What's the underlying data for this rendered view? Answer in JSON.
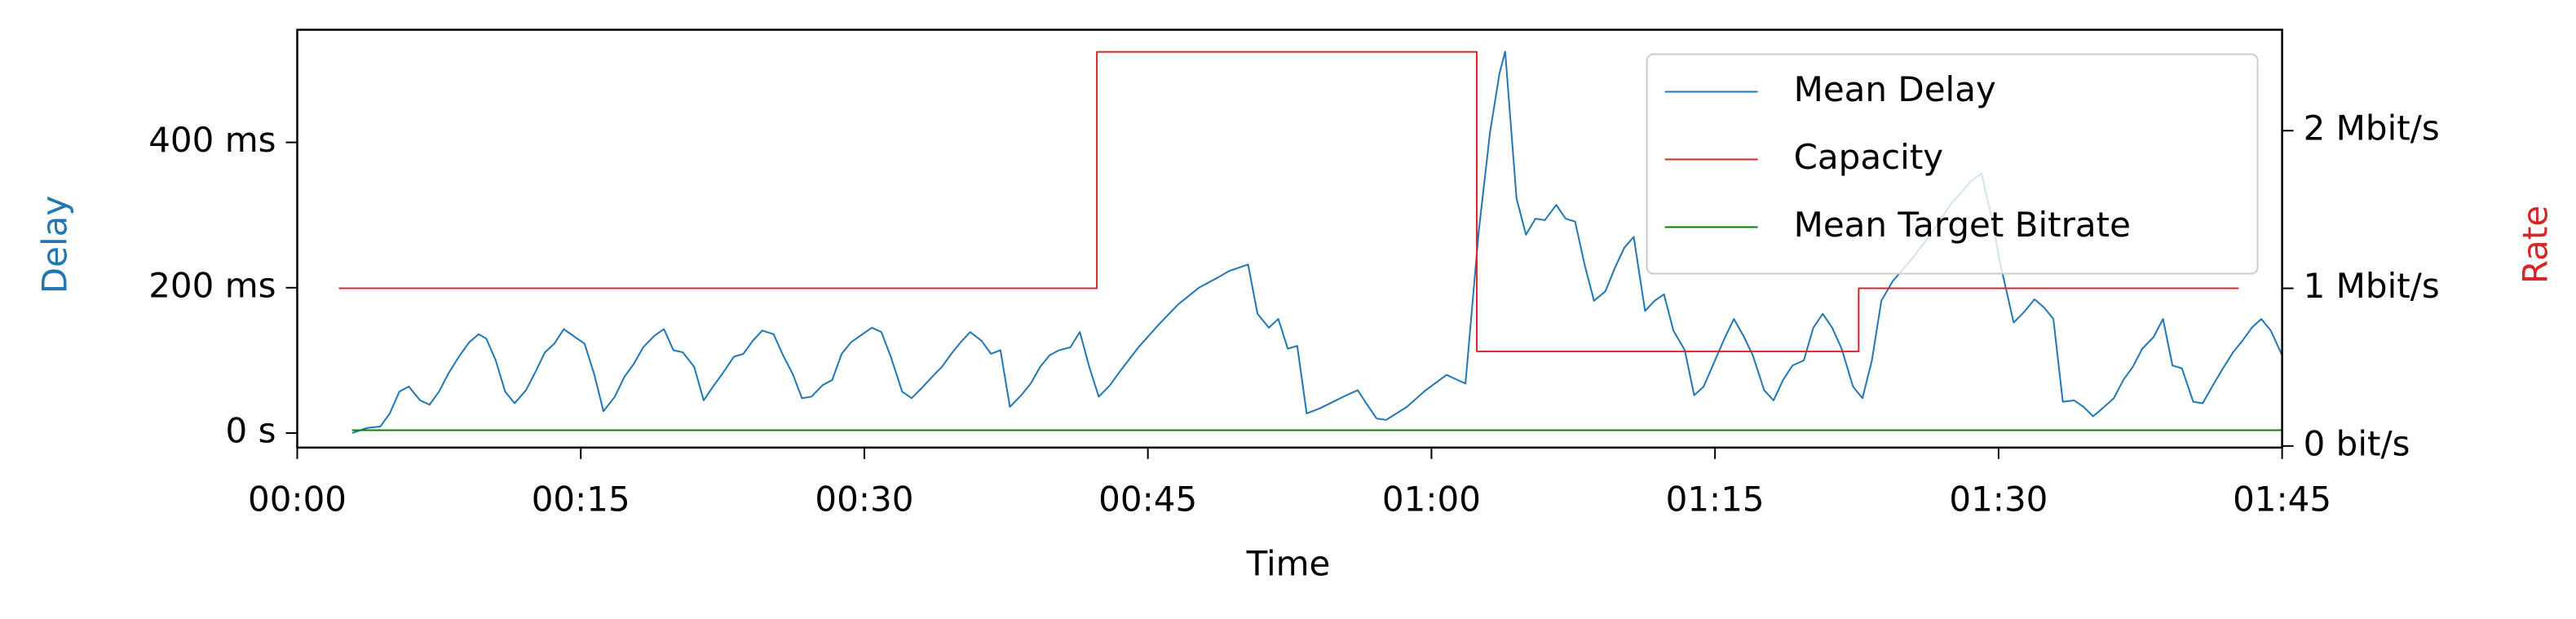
{
  "chart_data": {
    "type": "line",
    "xlabel": "Time",
    "ylabel": "Delay",
    "y2label": "Rate",
    "ylabel_color": "#1f77b4",
    "y2label_color": "#d62728",
    "legend": "upper right",
    "xlim": [
      0,
      105
    ],
    "xticks": [
      {
        "value": 0,
        "label": "00:00"
      },
      {
        "value": 15,
        "label": "00:15"
      },
      {
        "value": 30,
        "label": "00:30"
      },
      {
        "value": 45,
        "label": "00:45"
      },
      {
        "value": 60,
        "label": "01:00"
      },
      {
        "value": 75,
        "label": "01:15"
      },
      {
        "value": 90,
        "label": "01:30"
      },
      {
        "value": 105,
        "label": "01:45"
      }
    ],
    "ylim": [
      -20,
      555
    ],
    "yticks": [
      {
        "value": 0,
        "label": "0 s"
      },
      {
        "value": 200,
        "label": "200 ms"
      },
      {
        "value": 400,
        "label": "400 ms"
      }
    ],
    "y2lim": [
      -10000,
      2640000
    ],
    "y2ticks": [
      {
        "value": 0,
        "label": "0 bit/s"
      },
      {
        "value": 1000000,
        "label": "1 Mbit/s"
      },
      {
        "value": 2000000,
        "label": "2 Mbit/s"
      }
    ],
    "series": [
      {
        "name": "Mean Delay",
        "color": "#1f77b4",
        "x": [
          2.9,
          3.7,
          4.4,
          4.9,
          5.4,
          5.9,
          6.5,
          7.0,
          7.5,
          8.0,
          8.6,
          9.1,
          9.6,
          10.0,
          10.5,
          11.0,
          11.5,
          12.1,
          12.6,
          13.1,
          13.6,
          14.1,
          14.7,
          15.2,
          15.7,
          16.2,
          16.8,
          17.3,
          17.8,
          18.3,
          18.9,
          19.4,
          19.9,
          20.4,
          21.0,
          21.5,
          22.0,
          22.5,
          23.1,
          23.6,
          24.1,
          24.6,
          25.2,
          25.7,
          26.2,
          26.7,
          27.2,
          27.8,
          28.3,
          28.8,
          29.3,
          29.9,
          30.4,
          30.9,
          31.4,
          32.0,
          32.5,
          33.0,
          33.5,
          34.1,
          34.6,
          35.1,
          35.6,
          36.2,
          36.7,
          37.2,
          37.7,
          38.3,
          38.8,
          39.3,
          39.8,
          40.3,
          40.9,
          41.4,
          41.9,
          42.4,
          43.0,
          43.5,
          44.5,
          45.6,
          46.6,
          47.7,
          48.7,
          49.3,
          50.3,
          50.8,
          51.4,
          51.9,
          52.4,
          52.9,
          53.4,
          54.1,
          54.8,
          55.5,
          56.1,
          56.6,
          57.1,
          57.6,
          58.7,
          59.7,
          60.8,
          61.8,
          62.5,
          63.1,
          63.6,
          63.9,
          64.5,
          65.0,
          65.5,
          66.0,
          66.6,
          67.1,
          67.6,
          68.1,
          68.6,
          69.2,
          69.7,
          70.2,
          70.7,
          71.3,
          71.8,
          72.3,
          72.8,
          73.4,
          73.9,
          74.4,
          75.0,
          75.5,
          76.0,
          76.5,
          77.0,
          77.6,
          78.1,
          78.6,
          79.1,
          79.7,
          80.2,
          80.7,
          81.2,
          81.7,
          82.3,
          82.8,
          83.3,
          83.8,
          84.4,
          85.4,
          86.5,
          87.5,
          88.6,
          89.1,
          89.6,
          90.1,
          90.8,
          91.4,
          91.9,
          92.4,
          92.9,
          93.4,
          94.0,
          94.5,
          95.0,
          95.5,
          96.1,
          96.6,
          97.1,
          97.6,
          98.2,
          98.7,
          99.2,
          99.7,
          100.3,
          100.8,
          101.3,
          101.8,
          102.4,
          102.9,
          103.4,
          103.9,
          104.4,
          105.0
        ],
        "values": [
          0,
          7,
          9,
          27,
          57,
          64,
          45,
          39,
          57,
          82,
          107,
          125,
          136,
          130,
          100,
          57,
          41,
          59,
          84,
          111,
          123,
          143,
          132,
          123,
          82,
          30,
          50,
          77,
          95,
          118,
          134,
          143,
          114,
          111,
          91,
          45,
          64,
          82,
          105,
          109,
          127,
          141,
          136,
          107,
          82,
          48,
          50,
          66,
          73,
          109,
          125,
          136,
          145,
          139,
          105,
          57,
          48,
          61,
          75,
          91,
          109,
          125,
          139,
          127,
          109,
          114,
          36,
          52,
          68,
          91,
          107,
          114,
          118,
          139,
          91,
          50,
          66,
          84,
          118,
          150,
          177,
          200,
          214,
          223,
          232,
          164,
          145,
          157,
          116,
          120,
          27,
          34,
          43,
          52,
          59,
          39,
          20,
          18,
          36,
          59,
          80,
          68,
          277,
          414,
          495,
          525,
          323,
          273,
          295,
          293,
          314,
          295,
          291,
          232,
          182,
          195,
          227,
          255,
          270,
          168,
          182,
          191,
          141,
          114,
          52,
          64,
          100,
          130,
          157,
          134,
          107,
          59,
          45,
          73,
          93,
          100,
          145,
          164,
          145,
          116,
          64,
          48,
          100,
          182,
          209,
          239,
          277,
          316,
          348,
          357,
          300,
          232,
          152,
          168,
          184,
          173,
          157,
          43,
          45,
          36,
          23,
          34,
          48,
          73,
          91,
          116,
          132,
          157,
          93,
          89,
          43,
          41,
          64,
          86,
          111,
          127,
          145,
          157,
          141,
          107
        ]
      },
      {
        "name": "Capacity",
        "color": "#d62728",
        "axis": "y2",
        "x": [
          2.2,
          42.3,
          42.3,
          62.4,
          62.4,
          82.6,
          82.6,
          102.7
        ],
        "values": [
          1000000,
          1000000,
          2500000,
          2500000,
          600000,
          600000,
          1000000,
          1000000
        ]
      },
      {
        "name": "Mean Target Bitrate",
        "color": "#008000",
        "axis": "y2",
        "x": [
          2.9,
          105
        ],
        "values": [
          100000,
          100000
        ]
      }
    ]
  }
}
